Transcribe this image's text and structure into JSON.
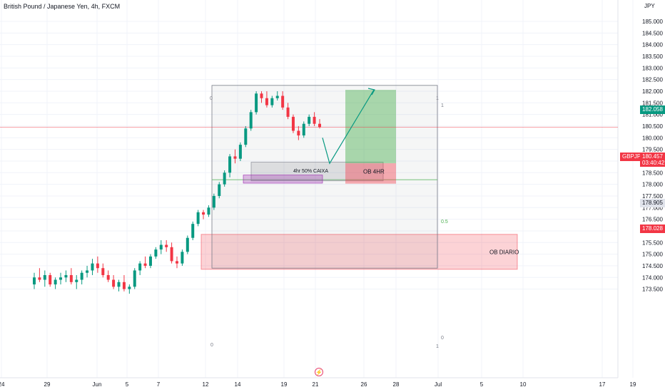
{
  "header": {
    "symbol_title": "British Pound / Japanese Yen, 4h, FXCM",
    "currency": "JPY"
  },
  "chart_data": {
    "type": "candlestick",
    "y_axis": {
      "unit": "JPY",
      "range": [
        173.2,
        185.5
      ],
      "ticks": [
        "173.500",
        "174.000",
        "174.500",
        "175.000",
        "175.500",
        "176.000",
        "176.500",
        "177.000",
        "177.500",
        "178.000",
        "178.500",
        "179.000",
        "179.500",
        "180.000",
        "180.500",
        "181.000",
        "181.500",
        "182.000",
        "182.500",
        "183.000",
        "183.500",
        "184.000",
        "184.500",
        "185.000"
      ]
    },
    "x_axis": {
      "ticks": [
        "24",
        "29",
        "Jun",
        "5",
        "7",
        "12",
        "14",
        "19",
        "21",
        "26",
        "28",
        "Jul",
        "5",
        "10",
        "17",
        "19"
      ]
    },
    "series": [
      {
        "o": 173.7,
        "h": 174.2,
        "l": 173.5,
        "c": 174.0
      },
      {
        "o": 174.0,
        "h": 174.4,
        "l": 173.8,
        "c": 173.9
      },
      {
        "o": 173.9,
        "h": 174.3,
        "l": 173.6,
        "c": 174.1
      },
      {
        "o": 174.1,
        "h": 174.2,
        "l": 173.6,
        "c": 173.7
      },
      {
        "o": 173.7,
        "h": 174.0,
        "l": 173.5,
        "c": 173.9
      },
      {
        "o": 173.9,
        "h": 174.2,
        "l": 173.7,
        "c": 174.0
      },
      {
        "o": 174.0,
        "h": 174.3,
        "l": 173.8,
        "c": 174.1
      },
      {
        "o": 174.1,
        "h": 174.4,
        "l": 173.7,
        "c": 173.8
      },
      {
        "o": 173.8,
        "h": 174.1,
        "l": 173.5,
        "c": 173.9
      },
      {
        "o": 173.9,
        "h": 174.3,
        "l": 173.7,
        "c": 174.2
      },
      {
        "o": 174.2,
        "h": 174.5,
        "l": 174.0,
        "c": 174.3
      },
      {
        "o": 174.3,
        "h": 174.8,
        "l": 174.1,
        "c": 174.6
      },
      {
        "o": 174.6,
        "h": 174.9,
        "l": 174.2,
        "c": 174.4
      },
      {
        "o": 174.4,
        "h": 174.6,
        "l": 174.0,
        "c": 174.1
      },
      {
        "o": 174.1,
        "h": 174.3,
        "l": 173.8,
        "c": 173.9
      },
      {
        "o": 173.9,
        "h": 174.1,
        "l": 173.5,
        "c": 173.6
      },
      {
        "o": 173.6,
        "h": 173.9,
        "l": 173.4,
        "c": 173.8
      },
      {
        "o": 173.8,
        "h": 174.1,
        "l": 173.4,
        "c": 173.5
      },
      {
        "o": 173.5,
        "h": 173.7,
        "l": 173.3,
        "c": 173.6
      },
      {
        "o": 173.6,
        "h": 174.4,
        "l": 173.5,
        "c": 174.3
      },
      {
        "o": 174.3,
        "h": 174.7,
        "l": 174.1,
        "c": 174.6
      },
      {
        "o": 174.6,
        "h": 174.9,
        "l": 174.4,
        "c": 174.5
      },
      {
        "o": 174.5,
        "h": 175.0,
        "l": 174.4,
        "c": 174.9
      },
      {
        "o": 174.9,
        "h": 175.3,
        "l": 174.8,
        "c": 175.2
      },
      {
        "o": 175.2,
        "h": 175.6,
        "l": 175.0,
        "c": 175.4
      },
      {
        "o": 175.4,
        "h": 175.6,
        "l": 175.1,
        "c": 175.3
      },
      {
        "o": 175.3,
        "h": 175.5,
        "l": 174.6,
        "c": 174.7
      },
      {
        "o": 174.7,
        "h": 174.9,
        "l": 174.4,
        "c": 174.6
      },
      {
        "o": 174.6,
        "h": 175.2,
        "l": 174.5,
        "c": 175.1
      },
      {
        "o": 175.1,
        "h": 175.8,
        "l": 175.0,
        "c": 175.7
      },
      {
        "o": 175.7,
        "h": 176.4,
        "l": 175.6,
        "c": 176.3
      },
      {
        "o": 176.3,
        "h": 176.9,
        "l": 176.2,
        "c": 176.8
      },
      {
        "o": 176.8,
        "h": 176.9,
        "l": 176.5,
        "c": 176.7
      },
      {
        "o": 176.7,
        "h": 177.1,
        "l": 176.6,
        "c": 177.0
      },
      {
        "o": 177.0,
        "h": 177.6,
        "l": 176.9,
        "c": 177.5
      },
      {
        "o": 177.5,
        "h": 178.1,
        "l": 177.4,
        "c": 178.0
      },
      {
        "o": 178.0,
        "h": 178.6,
        "l": 177.9,
        "c": 178.5
      },
      {
        "o": 178.5,
        "h": 179.3,
        "l": 178.3,
        "c": 179.2
      },
      {
        "o": 179.2,
        "h": 179.5,
        "l": 178.9,
        "c": 179.1
      },
      {
        "o": 179.1,
        "h": 179.8,
        "l": 179.0,
        "c": 179.7
      },
      {
        "o": 179.7,
        "h": 180.5,
        "l": 179.6,
        "c": 180.4
      },
      {
        "o": 180.4,
        "h": 181.2,
        "l": 180.3,
        "c": 181.1
      },
      {
        "o": 181.1,
        "h": 182.0,
        "l": 181.0,
        "c": 181.9
      },
      {
        "o": 181.9,
        "h": 182.0,
        "l": 181.5,
        "c": 181.7
      },
      {
        "o": 181.7,
        "h": 182.0,
        "l": 181.3,
        "c": 181.4
      },
      {
        "o": 181.4,
        "h": 181.8,
        "l": 181.3,
        "c": 181.7
      },
      {
        "o": 181.7,
        "h": 182.0,
        "l": 181.6,
        "c": 181.8
      },
      {
        "o": 181.8,
        "h": 182.0,
        "l": 181.2,
        "c": 181.3
      },
      {
        "o": 181.3,
        "h": 181.5,
        "l": 180.8,
        "c": 180.9
      },
      {
        "o": 180.9,
        "h": 181.0,
        "l": 180.2,
        "c": 180.3
      },
      {
        "o": 180.3,
        "h": 180.5,
        "l": 179.9,
        "c": 180.1
      },
      {
        "o": 180.1,
        "h": 180.7,
        "l": 180.0,
        "c": 180.6
      },
      {
        "o": 180.6,
        "h": 181.0,
        "l": 180.5,
        "c": 180.9
      },
      {
        "o": 180.9,
        "h": 181.1,
        "l": 180.5,
        "c": 180.6
      },
      {
        "o": 180.6,
        "h": 180.8,
        "l": 180.4,
        "c": 180.457
      }
    ],
    "price_tags": [
      {
        "label": "182.058",
        "price": 182.058,
        "color": "green"
      },
      {
        "label": "180.457",
        "price": 180.457,
        "color": "red",
        "symbol": "GBPJPY",
        "countdown": "03:40:42"
      },
      {
        "label": "178.905",
        "price": 178.905,
        "color": "gray"
      },
      {
        "label": "178.028",
        "price": 178.028,
        "color": "red"
      }
    ],
    "annotations": {
      "fib_labels": [
        "0",
        "1",
        "0.5",
        "0",
        "1",
        "1",
        "0"
      ],
      "box_4h_label": "4hr 50% CAIXA",
      "ob4h_label": "OB 4HR",
      "obd_label": "OB DIARIO"
    },
    "colors": {
      "up": "#089981",
      "down": "#f23645",
      "grid": "#f0f3fa"
    }
  }
}
